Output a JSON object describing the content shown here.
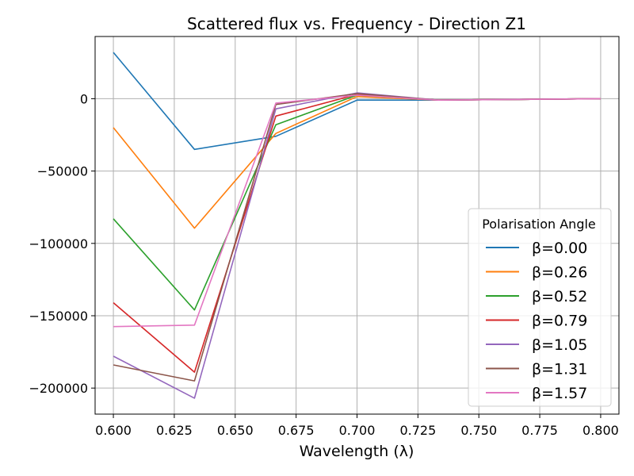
{
  "chart_data": {
    "type": "line",
    "title": "Scattered flux vs. Frequency - Direction Z1",
    "xlabel": "Wavelength (λ)",
    "ylabel": "",
    "xlim": [
      0.5925,
      0.8075
    ],
    "ylim": [
      -218000,
      43000
    ],
    "grid": true,
    "legend_title": "Polarisation Angle",
    "legend_position": "center-right",
    "x": [
      0.6,
      0.6333,
      0.6667,
      0.7,
      0.7333,
      0.7667,
      0.8
    ],
    "xticks": [
      0.6,
      0.625,
      0.65,
      0.675,
      0.7,
      0.725,
      0.75,
      0.775,
      0.8
    ],
    "xtick_labels": [
      "0.600",
      "0.625",
      "0.650",
      "0.675",
      "0.700",
      "0.725",
      "0.750",
      "0.775",
      "0.800"
    ],
    "yticks": [
      0,
      -50000,
      -100000,
      -150000,
      -200000
    ],
    "ytick_labels": [
      "0",
      "−50000",
      "−100000",
      "−150000",
      "−200000"
    ],
    "series": [
      {
        "name": "β=0.00",
        "color": "#1f77b4",
        "values": [
          32000,
          -35000,
          -26000,
          -1000,
          -1000,
          -500,
          0
        ]
      },
      {
        "name": "β=0.26",
        "color": "#ff7f0e",
        "values": [
          -20000,
          -89500,
          -24000,
          1500,
          -1000,
          -500,
          0
        ]
      },
      {
        "name": "β=0.52",
        "color": "#2ca02c",
        "values": [
          -83000,
          -146000,
          -18000,
          2500,
          -1000,
          -500,
          0
        ]
      },
      {
        "name": "β=0.79",
        "color": "#d62728",
        "values": [
          -141000,
          -189000,
          -12000,
          3000,
          -1000,
          -500,
          0
        ]
      },
      {
        "name": "β=1.05",
        "color": "#9467bd",
        "values": [
          -178000,
          -207000,
          -7000,
          4000,
          -1000,
          -500,
          0
        ]
      },
      {
        "name": "β=1.31",
        "color": "#8c564b",
        "values": [
          -184000,
          -195000,
          -4000,
          3500,
          -1000,
          -500,
          0
        ]
      },
      {
        "name": "β=1.57",
        "color": "#e377c2",
        "values": [
          -157500,
          -156500,
          -3000,
          2500,
          -1000,
          -500,
          0
        ]
      }
    ]
  }
}
